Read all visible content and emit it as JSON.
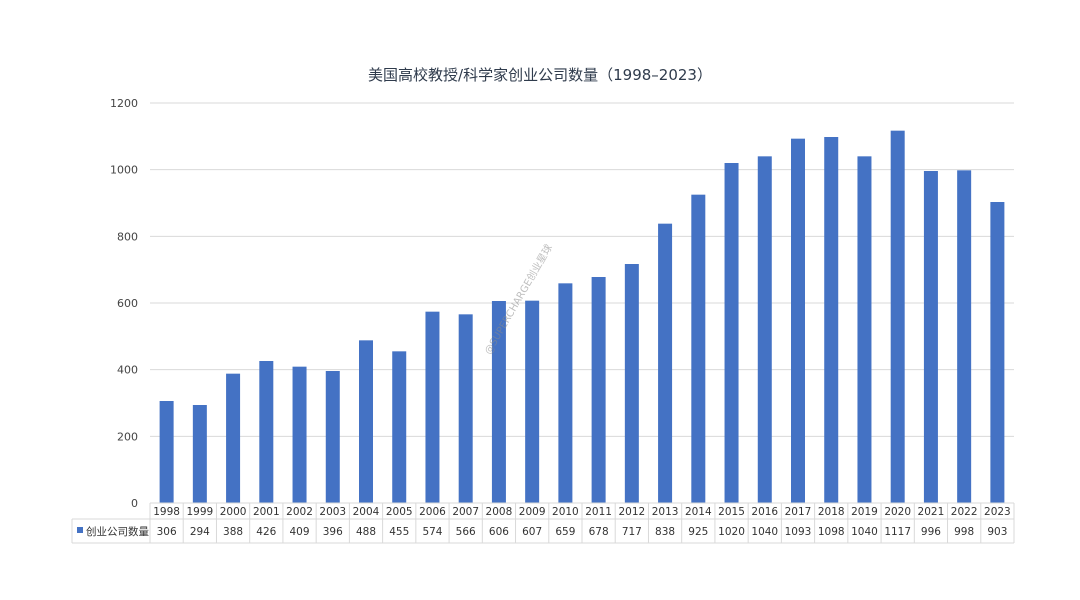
{
  "chart_data": {
    "type": "bar",
    "title": "美国高校教授/科学家创业公司数量（1998–2023）",
    "xlabel": "",
    "ylabel": "",
    "ylim": [
      0,
      1200
    ],
    "yticks": [
      0,
      200,
      400,
      600,
      800,
      1000,
      1200
    ],
    "grid": true,
    "legend_placement": "data-table-left",
    "bar_color": "#4472c4",
    "categories": [
      "1998",
      "1999",
      "2000",
      "2001",
      "2002",
      "2003",
      "2004",
      "2005",
      "2006",
      "2007",
      "2008",
      "2009",
      "2010",
      "2011",
      "2012",
      "2013",
      "2014",
      "2015",
      "2016",
      "2017",
      "2018",
      "2019",
      "2020",
      "2021",
      "2022",
      "2023"
    ],
    "series": [
      {
        "name": "创业公司数量",
        "values": [
          306,
          294,
          388,
          426,
          409,
          396,
          488,
          455,
          574,
          566,
          606,
          607,
          659,
          678,
          717,
          838,
          925,
          1020,
          1040,
          1093,
          1098,
          1040,
          1117,
          996,
          998,
          903
        ]
      }
    ]
  },
  "watermark": "@SUPERCHARGE创业星球"
}
